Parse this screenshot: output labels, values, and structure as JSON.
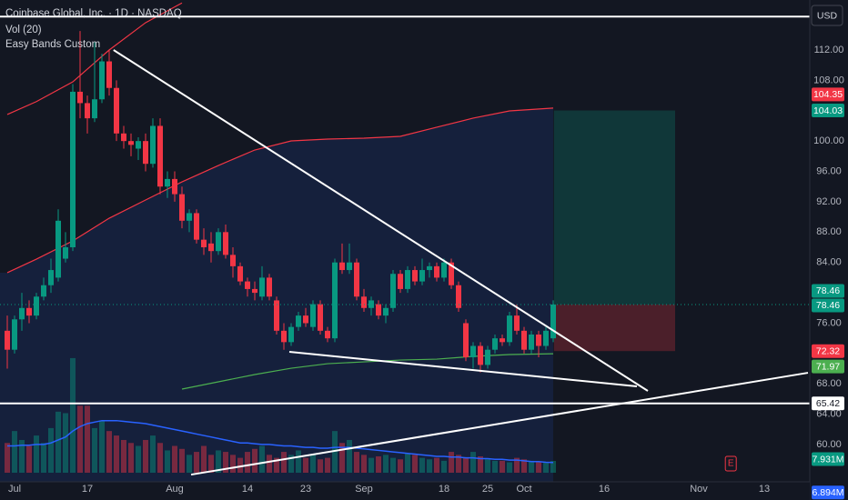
{
  "chart_data": {
    "type": "candlestick",
    "title": "Coinbase Global, Inc. · 1D · NASDAQ",
    "indicators": [
      "Vol (20)",
      "Easy Bands Custom"
    ],
    "currency": "USD",
    "grid": false,
    "up_color": "#089981",
    "down_color": "#f23645",
    "ylim": [
      55.09,
      118.59
    ],
    "yticks": [
      {
        "value": 112,
        "label": "112.00"
      },
      {
        "value": 108,
        "label": "108.00"
      },
      {
        "value": 100,
        "label": "100.00"
      },
      {
        "value": 96,
        "label": "96.00"
      },
      {
        "value": 92,
        "label": "92.00"
      },
      {
        "value": 88,
        "label": "88.00"
      },
      {
        "value": 84,
        "label": "84.00"
      },
      {
        "value": 76,
        "label": "76.00"
      },
      {
        "value": 68,
        "label": "68.00"
      },
      {
        "value": 64,
        "label": "64.00"
      },
      {
        "value": 60,
        "label": "60.00"
      }
    ],
    "categories": [
      null,
      "Jul",
      null,
      null,
      null,
      null,
      null,
      null,
      null,
      null,
      null,
      "17",
      null,
      null,
      null,
      null,
      null,
      null,
      null,
      null,
      null,
      null,
      null,
      "Aug",
      null,
      null,
      null,
      null,
      null,
      null,
      null,
      null,
      null,
      "14",
      null,
      null,
      null,
      null,
      null,
      null,
      null,
      "23",
      null,
      null,
      null,
      null,
      null,
      null,
      null,
      "Sep",
      null,
      null,
      null,
      null,
      null,
      null,
      null,
      null,
      null,
      null,
      "18",
      null,
      null,
      null,
      null,
      null,
      "25",
      null,
      null,
      null,
      null,
      "Oct",
      null,
      null,
      null,
      null,
      null,
      null,
      null,
      null,
      null,
      null,
      "16",
      null,
      null,
      null,
      null,
      null,
      null,
      null,
      null,
      null,
      null,
      null,
      null,
      "Nov",
      null,
      null,
      null,
      null,
      null,
      null,
      null,
      null,
      "13",
      null,
      null,
      null,
      null,
      null,
      null
    ],
    "candles": [
      [
        75,
        77,
        70,
        72.5
      ],
      [
        72.5,
        77,
        72,
        76.5
      ],
      [
        76.5,
        80,
        75,
        78
      ],
      [
        78,
        79,
        76,
        77
      ],
      [
        77,
        80,
        76.5,
        79.5
      ],
      [
        79.5,
        82,
        79,
        81
      ],
      [
        81,
        84.5,
        80,
        83
      ],
      [
        82,
        91,
        81.5,
        89.5
      ],
      [
        84.5,
        88,
        84,
        86
      ],
      [
        86,
        107.5,
        85.5,
        106.5
      ],
      [
        106.5,
        114.5,
        103,
        105
      ],
      [
        105,
        106,
        101,
        103
      ],
      [
        103,
        113,
        102.5,
        105.5
      ],
      [
        105.5,
        111.5,
        105,
        110.5
      ],
      [
        110.5,
        112,
        106,
        107
      ],
      [
        107,
        108,
        100,
        101
      ],
      [
        101,
        102,
        99,
        100
      ],
      [
        100,
        101,
        98,
        99.5
      ],
      [
        99,
        100.5,
        97.5,
        100
      ],
      [
        100,
        101,
        96,
        97
      ],
      [
        97,
        103,
        96.5,
        102
      ],
      [
        102,
        103,
        93,
        94
      ],
      [
        94,
        96,
        92.5,
        95
      ],
      [
        95,
        96,
        92,
        93
      ],
      [
        93,
        94,
        88.5,
        89.5
      ],
      [
        89.5,
        91,
        88,
        90.5
      ],
      [
        90.5,
        91,
        86.5,
        87
      ],
      [
        87,
        88.5,
        85,
        86
      ],
      [
        86.5,
        88,
        84,
        85.5
      ],
      [
        85.5,
        88.5,
        85,
        88
      ],
      [
        88,
        89,
        84.5,
        85
      ],
      [
        85,
        86,
        82,
        83.5
      ],
      [
        83.5,
        84,
        81,
        81.5
      ],
      [
        81.5,
        82,
        79.5,
        80.5
      ],
      [
        80.5,
        81.5,
        79,
        80
      ],
      [
        79.5,
        83.5,
        79,
        82
      ],
      [
        82,
        82.5,
        79,
        79.5
      ],
      [
        79,
        79.5,
        74.5,
        75
      ],
      [
        75,
        76,
        72.5,
        73.5
      ],
      [
        73.5,
        76,
        73,
        75.5
      ],
      [
        75.5,
        77.5,
        75,
        77
      ],
      [
        77,
        78,
        75.5,
        76
      ],
      [
        75.5,
        79,
        75,
        78.5
      ],
      [
        78.5,
        79,
        74.5,
        75
      ],
      [
        75,
        75.5,
        73.5,
        74
      ],
      [
        74,
        84.5,
        73.5,
        84
      ],
      [
        84,
        86.5,
        82.5,
        83
      ],
      [
        83,
        86.5,
        82.5,
        84
      ],
      [
        84,
        84.5,
        79,
        79.5
      ],
      [
        79.5,
        80.5,
        77.5,
        78
      ],
      [
        78,
        79.5,
        77,
        79
      ],
      [
        78.5,
        79,
        76.5,
        77
      ],
      [
        77,
        78.5,
        76,
        78
      ],
      [
        78,
        83,
        77.5,
        82.5
      ],
      [
        82.5,
        83,
        80,
        80.5
      ],
      [
        80.5,
        83.5,
        80,
        83
      ],
      [
        83,
        83.5,
        81,
        81.5
      ],
      [
        81.5,
        84.5,
        81,
        83
      ],
      [
        83,
        84,
        82,
        83.5
      ],
      [
        83.5,
        84,
        81.5,
        82
      ],
      [
        82,
        84.5,
        81.5,
        84
      ],
      [
        84,
        84.5,
        80.5,
        81
      ],
      [
        81,
        81.5,
        77.5,
        78
      ],
      [
        76,
        76.5,
        71,
        71.5
      ],
      [
        71.5,
        73.5,
        70,
        73
      ],
      [
        73,
        73.5,
        69.5,
        70.5
      ],
      [
        70.5,
        73,
        70,
        72.5
      ],
      [
        72.5,
        74.5,
        72,
        74
      ],
      [
        74,
        74.5,
        73,
        73.5
      ],
      [
        73.5,
        77.5,
        73,
        77
      ],
      [
        77,
        78.5,
        74.5,
        75
      ],
      [
        75,
        75.5,
        72,
        72.5
      ],
      [
        72.5,
        75,
        72,
        74.5
      ],
      [
        74.5,
        75,
        71.5,
        73
      ],
      [
        73,
        75.5,
        72.5,
        75
      ],
      [
        74,
        79,
        73.5,
        78.46
      ],
      null,
      null,
      null,
      null,
      null,
      null,
      null,
      null,
      null,
      null,
      null,
      null,
      null,
      null,
      null,
      null,
      null,
      null,
      null,
      null,
      null,
      null,
      null,
      null,
      null,
      null,
      null,
      null,
      null,
      null,
      null,
      null,
      null,
      null,
      null
    ],
    "volume": {
      "ylim": [
        0,
        80
      ],
      "values": [
        20,
        28,
        22,
        18,
        25,
        20,
        30,
        41,
        40,
        77,
        45,
        45,
        30,
        35,
        28,
        25,
        22,
        20,
        18,
        22,
        25,
        20,
        15,
        18,
        16,
        12,
        14,
        18,
        12,
        15,
        14,
        12,
        10,
        14,
        16,
        18,
        12,
        10,
        14,
        12,
        15,
        10,
        12,
        9,
        10,
        28,
        20,
        22,
        14,
        12,
        10,
        11,
        12,
        10,
        9,
        13,
        12,
        10,
        9,
        10,
        8,
        14,
        12,
        10,
        14,
        11,
        9,
        8,
        8,
        7,
        10,
        9,
        8,
        7,
        7,
        7.931,
        null,
        null,
        null,
        null,
        null,
        null,
        null,
        null,
        null,
        null,
        null,
        null,
        null,
        null,
        null,
        null,
        null,
        null,
        null,
        null,
        null,
        null,
        null,
        null,
        null,
        null,
        null,
        null,
        null,
        null,
        null,
        null,
        null,
        null,
        null
      ],
      "ma": [
        18,
        18,
        18.5,
        18.5,
        19,
        19,
        20,
        22,
        24,
        28,
        31,
        33,
        34,
        35,
        35,
        35,
        34.5,
        34,
        33.5,
        33,
        32,
        31,
        30,
        29,
        28,
        27,
        26,
        25,
        24,
        23,
        22,
        21,
        20,
        20,
        19.5,
        19,
        19,
        18.5,
        18,
        18,
        17.5,
        17,
        17,
        16.5,
        16.5,
        17,
        17,
        17,
        16.5,
        16,
        15.5,
        15,
        14.5,
        14,
        13.5,
        13,
        12.5,
        12,
        11.5,
        11,
        11,
        10.5,
        10.5,
        10,
        10,
        9.5,
        9.5,
        9,
        9,
        8.5,
        8.5,
        8,
        7.5,
        7.5,
        7,
        6.894,
        null,
        null,
        null,
        null,
        null,
        null,
        null,
        null,
        null,
        null,
        null,
        null,
        null,
        null,
        null,
        null,
        null,
        null,
        null,
        null,
        null,
        null,
        null,
        null,
        null,
        null,
        null,
        null,
        null,
        null,
        null,
        null,
        null,
        null,
        null
      ],
      "ma_color": "#2962ff",
      "last": {
        "value": 7.931,
        "label": "7.931M"
      },
      "ma_last": {
        "value": 6.894,
        "label": "6.894M"
      }
    },
    "bands": {
      "upper": {
        "color": "#f23645",
        "x": [
          0,
          4,
          9,
          14,
          19,
          24
        ],
        "values": [
          103.5,
          105.2,
          107.8,
          112,
          115.6,
          118.2
        ]
      },
      "middle": {
        "color": "#f23645",
        "x": [
          0,
          4,
          9,
          14,
          19,
          24,
          29,
          34,
          39,
          44,
          49,
          54,
          59,
          64,
          69,
          75
        ],
        "values": [
          82.65,
          84.44,
          86.84,
          89.83,
          92.23,
          94.62,
          96.78,
          98.82,
          100.02,
          100.26,
          100.38,
          100.62,
          101.82,
          103.02,
          103.97,
          104.35
        ]
      },
      "lower": {
        "color": "#4caf50",
        "x": [
          24,
          29,
          34,
          39,
          44,
          49,
          54,
          59,
          64,
          69,
          75
        ],
        "values": [
          67.31,
          68.27,
          69.23,
          70.06,
          70.66,
          70.9,
          71.14,
          71.26,
          71.62,
          71.86,
          71.97
        ]
      }
    },
    "position": {
      "x": [
        75.1,
        91.75
      ],
      "entry": 78.46,
      "target": 104.03,
      "stop": 72.32
    },
    "levels": [
      116.4,
      65.42
    ],
    "drawings": [
      {
        "x": [
          14.6,
          88
        ],
        "y": [
          112,
          67.07
        ]
      },
      {
        "x": [
          38.75,
          86.5
        ],
        "y": [
          72.22,
          67.67
        ]
      },
      {
        "x": [
          25.25,
          110
        ],
        "y": [
          56.04,
          69.46
        ]
      }
    ],
    "earnings": {
      "x": 99.4,
      "label": "E"
    }
  }
}
